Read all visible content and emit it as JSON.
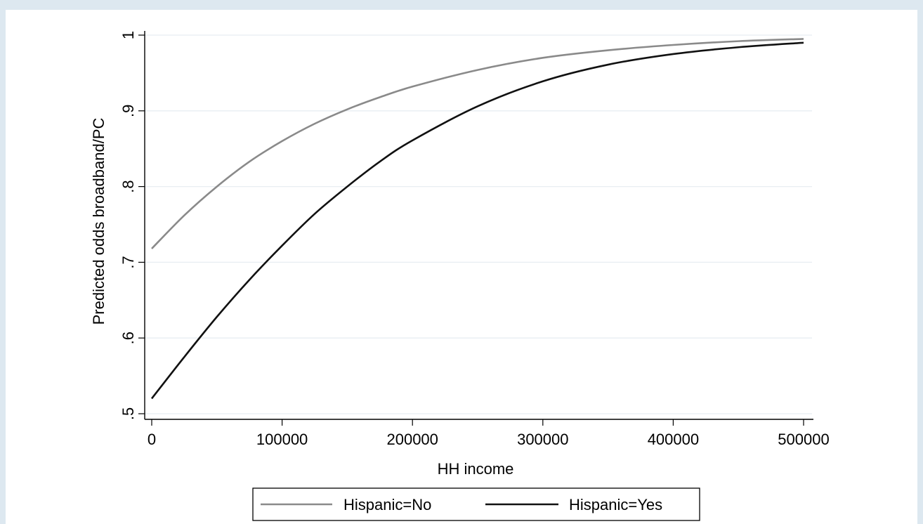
{
  "chart_data": {
    "type": "line",
    "xlabel": "HH income",
    "ylabel": "Predicted odds broadband/PC",
    "xlim": [
      0,
      500000
    ],
    "ylim": [
      0.5,
      1.0
    ],
    "xticks": [
      0,
      100000,
      200000,
      300000,
      400000,
      500000
    ],
    "xtick_labels": [
      "0",
      "100000",
      "200000",
      "300000",
      "400000",
      "500000"
    ],
    "yticks": [
      0.5,
      0.6,
      0.7,
      0.8,
      0.9,
      1.0
    ],
    "ytick_labels": [
      ".5",
      ".6",
      ".7",
      ".8",
      ".9",
      "1"
    ],
    "grid": "horizontal",
    "legend_position": "bottom",
    "series": [
      {
        "name": "Hispanic=No",
        "color": "#8a8a8a",
        "x": [
          0,
          25000,
          50000,
          75000,
          100000,
          125000,
          150000,
          175000,
          200000,
          250000,
          300000,
          350000,
          400000,
          450000,
          500000
        ],
        "y": [
          0.718,
          0.762,
          0.8,
          0.833,
          0.86,
          0.883,
          0.902,
          0.918,
          0.932,
          0.954,
          0.97,
          0.98,
          0.987,
          0.992,
          0.995
        ]
      },
      {
        "name": "Hispanic=Yes",
        "color": "#111111",
        "x": [
          0,
          25000,
          50000,
          75000,
          100000,
          125000,
          150000,
          175000,
          200000,
          250000,
          300000,
          350000,
          400000,
          450000,
          500000
        ],
        "y": [
          0.52,
          0.575,
          0.628,
          0.677,
          0.722,
          0.764,
          0.8,
          0.833,
          0.861,
          0.906,
          0.939,
          0.961,
          0.975,
          0.984,
          0.99
        ]
      }
    ]
  }
}
